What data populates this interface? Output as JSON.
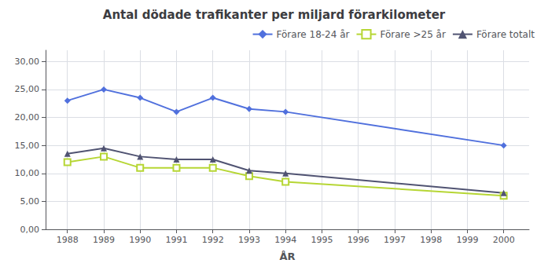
{
  "chart_data": {
    "type": "line",
    "title": "Antal dödade trafikanter per miljard förarkilometer",
    "xlabel": "ÅR",
    "x": [
      1988,
      1989,
      1990,
      1991,
      1992,
      1993,
      1994,
      2000
    ],
    "series": [
      {
        "name": "Förare 18-24 år",
        "values": [
          23.0,
          25.0,
          23.5,
          21.0,
          23.5,
          21.5,
          21.0,
          15.0
        ],
        "marker": "diamond"
      },
      {
        "name": "Förare >25 år",
        "values": [
          12.0,
          13.0,
          11.0,
          11.0,
          11.0,
          9.5,
          8.5,
          6.0
        ],
        "marker": "open square"
      },
      {
        "name": "Förare totalt",
        "values": [
          13.5,
          14.5,
          13.0,
          12.5,
          12.5,
          10.5,
          10.0,
          6.5
        ],
        "marker": "triangle"
      }
    ],
    "xlim": [
      1987.4,
      2000.7
    ],
    "xticks": [
      1988,
      1989,
      1990,
      1991,
      1992,
      1993,
      1994,
      1995,
      1996,
      1997,
      1998,
      1999,
      2000
    ],
    "ylim": [
      0,
      32
    ],
    "yticks": [
      {
        "value": 0,
        "label": "0,00"
      },
      {
        "value": 5,
        "label": "5,00"
      },
      {
        "value": 10,
        "label": "10,00"
      },
      {
        "value": 15,
        "label": "15,00"
      },
      {
        "value": 20,
        "label": "20,00"
      },
      {
        "value": 25,
        "label": "25,00"
      },
      {
        "value": 30,
        "label": "30,00"
      }
    ],
    "grid": true,
    "legend": "upper right"
  }
}
